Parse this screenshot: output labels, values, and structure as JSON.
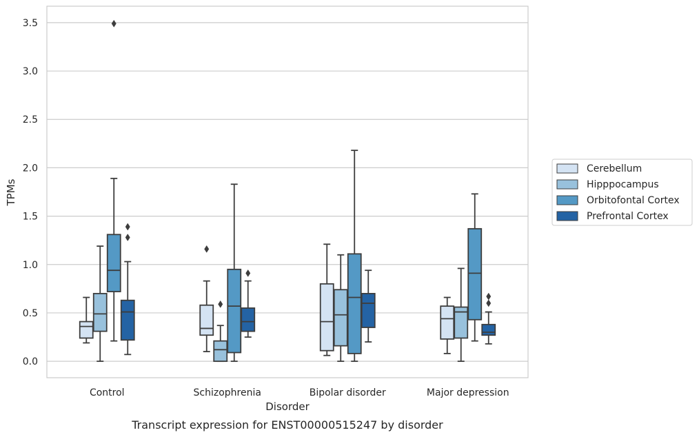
{
  "chart_data": {
    "type": "box",
    "xlabel": "Disorder",
    "ylabel": "TPMs",
    "caption": "Transcript expression for ENST00000515247 by disorder",
    "ylim": [
      -0.17,
      3.67
    ],
    "yticks": [
      0.0,
      0.5,
      1.0,
      1.5,
      2.0,
      2.5,
      3.0,
      3.5
    ],
    "ytick_labels": [
      "0.0",
      "0.5",
      "1.0",
      "1.5",
      "2.0",
      "2.5",
      "3.0",
      "3.5"
    ],
    "grid": "horizontal",
    "legend_position": "right",
    "categories": [
      "Control",
      "Schizophrenia",
      "Bipolar disorder",
      "Major depression"
    ],
    "series": [
      {
        "name": "Cerebellum",
        "color": "#d4e3f3",
        "boxes": [
          {
            "whislo": 0.19,
            "q1": 0.24,
            "med": 0.36,
            "q3": 0.41,
            "whishi": 0.66,
            "fliers": []
          },
          {
            "whislo": 0.1,
            "q1": 0.27,
            "med": 0.34,
            "q3": 0.58,
            "whishi": 0.83,
            "fliers": [
              1.16
            ]
          },
          {
            "whislo": 0.06,
            "q1": 0.11,
            "med": 0.41,
            "q3": 0.8,
            "whishi": 1.21,
            "fliers": []
          },
          {
            "whislo": 0.08,
            "q1": 0.23,
            "med": 0.44,
            "q3": 0.57,
            "whishi": 0.66,
            "fliers": []
          }
        ]
      },
      {
        "name": "Hipppocampus",
        "color": "#98c1dc",
        "boxes": [
          {
            "whislo": 0.0,
            "q1": 0.31,
            "med": 0.49,
            "q3": 0.7,
            "whishi": 1.19,
            "fliers": []
          },
          {
            "whislo": 0.0,
            "q1": 0.0,
            "med": 0.12,
            "q3": 0.21,
            "whishi": 0.37,
            "fliers": [
              0.59
            ]
          },
          {
            "whislo": 0.0,
            "q1": 0.16,
            "med": 0.48,
            "q3": 0.74,
            "whishi": 1.1,
            "fliers": []
          },
          {
            "whislo": 0.0,
            "q1": 0.24,
            "med": 0.51,
            "q3": 0.56,
            "whishi": 0.96,
            "fliers": []
          }
        ]
      },
      {
        "name": "Orbitofontal Cortex",
        "color": "#5499c5",
        "boxes": [
          {
            "whislo": 0.21,
            "q1": 0.72,
            "med": 0.94,
            "q3": 1.31,
            "whishi": 1.89,
            "fliers": [
              3.49
            ]
          },
          {
            "whislo": 0.0,
            "q1": 0.09,
            "med": 0.57,
            "q3": 0.95,
            "whishi": 1.83,
            "fliers": []
          },
          {
            "whislo": 0.0,
            "q1": 0.08,
            "med": 0.66,
            "q3": 1.11,
            "whishi": 2.18,
            "fliers": []
          },
          {
            "whislo": 0.21,
            "q1": 0.43,
            "med": 0.91,
            "q3": 1.37,
            "whishi": 1.73,
            "fliers": []
          }
        ]
      },
      {
        "name": "Prefrontal Cortex",
        "color": "#2463a4",
        "boxes": [
          {
            "whislo": 0.07,
            "q1": 0.22,
            "med": 0.51,
            "q3": 0.63,
            "whishi": 1.03,
            "fliers": [
              1.28,
              1.39
            ]
          },
          {
            "whislo": 0.25,
            "q1": 0.31,
            "med": 0.41,
            "q3": 0.55,
            "whishi": 0.83,
            "fliers": [
              0.91
            ]
          },
          {
            "whislo": 0.2,
            "q1": 0.35,
            "med": 0.6,
            "q3": 0.7,
            "whishi": 0.94,
            "fliers": []
          },
          {
            "whislo": 0.18,
            "q1": 0.27,
            "med": 0.3,
            "q3": 0.38,
            "whishi": 0.51,
            "fliers": [
              0.6,
              0.67
            ]
          }
        ]
      }
    ],
    "colors": {
      "edge": "#3d3d3d",
      "grid": "#cccccc",
      "frame": "#cccccc",
      "text": "#262626"
    }
  }
}
